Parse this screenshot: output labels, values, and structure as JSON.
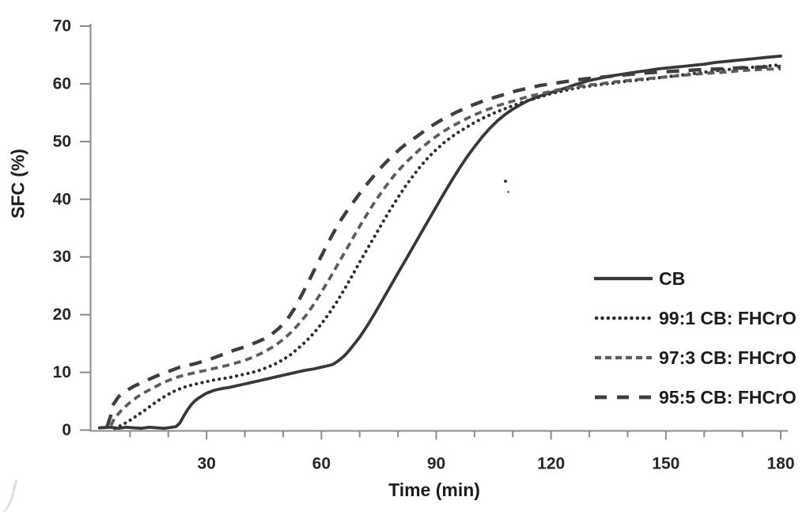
{
  "figure": {
    "background": "#ffffff",
    "text_color": "#1c1c1c",
    "axis_color": "#8a8a8a"
  },
  "chart_data": {
    "type": "line",
    "title": "",
    "xlabel": "Time (min)",
    "ylabel": "SFC (%)",
    "xlim": [
      0,
      180
    ],
    "ylim": [
      0,
      70
    ],
    "grid": false,
    "legend_position": "right-middle",
    "y_ticks": [
      0,
      10,
      20,
      30,
      40,
      50,
      60,
      70
    ],
    "x_major_ticks": [
      30,
      60,
      90,
      120,
      150,
      180
    ],
    "x_minor_ticks": [
      10,
      20,
      40,
      50,
      70,
      80,
      100,
      110,
      130,
      140,
      160,
      170
    ],
    "series": [
      {
        "name": "CB",
        "style": "solid",
        "color": "#383838",
        "width": 3.8,
        "points": [
          [
            2,
            0.4
          ],
          [
            5,
            0.5
          ],
          [
            7,
            0.3
          ],
          [
            9,
            0.5
          ],
          [
            11,
            0.4
          ],
          [
            13,
            0.3
          ],
          [
            15,
            0.5
          ],
          [
            17,
            0.4
          ],
          [
            19,
            0.3
          ],
          [
            21,
            0.5
          ],
          [
            22,
            0.6
          ],
          [
            23,
            1.2
          ],
          [
            24,
            2.4
          ],
          [
            25,
            3.5
          ],
          [
            26,
            4.4
          ],
          [
            27,
            5.1
          ],
          [
            28,
            5.6
          ],
          [
            29,
            6.0
          ],
          [
            30,
            6.4
          ],
          [
            32,
            6.9
          ],
          [
            34,
            7.2
          ],
          [
            36,
            7.4
          ],
          [
            38,
            7.7
          ],
          [
            40,
            8.0
          ],
          [
            42,
            8.3
          ],
          [
            44,
            8.6
          ],
          [
            46,
            8.9
          ],
          [
            48,
            9.2
          ],
          [
            50,
            9.5
          ],
          [
            52,
            9.8
          ],
          [
            54,
            10.1
          ],
          [
            56,
            10.4
          ],
          [
            58,
            10.6
          ],
          [
            60,
            10.9
          ],
          [
            62,
            11.2
          ],
          [
            63,
            11.4
          ],
          [
            64,
            11.8
          ],
          [
            65,
            12.3
          ],
          [
            66,
            12.9
          ],
          [
            67,
            13.6
          ],
          [
            68,
            14.4
          ],
          [
            70,
            16.1
          ],
          [
            72,
            18.1
          ],
          [
            74,
            20.3
          ],
          [
            76,
            22.6
          ],
          [
            78,
            24.9
          ],
          [
            80,
            27.2
          ],
          [
            82,
            29.5
          ],
          [
            84,
            31.8
          ],
          [
            86,
            34.1
          ],
          [
            88,
            36.4
          ],
          [
            90,
            38.7
          ],
          [
            92,
            41.0
          ],
          [
            94,
            43.2
          ],
          [
            96,
            45.3
          ],
          [
            98,
            47.3
          ],
          [
            100,
            49.1
          ],
          [
            102,
            50.8
          ],
          [
            104,
            52.3
          ],
          [
            106,
            53.6
          ],
          [
            108,
            54.7
          ],
          [
            110,
            55.6
          ],
          [
            112,
            56.4
          ],
          [
            114,
            57.1
          ],
          [
            116,
            57.6
          ],
          [
            118,
            58.1
          ],
          [
            120,
            58.5
          ],
          [
            122,
            58.9
          ],
          [
            124,
            59.3
          ],
          [
            126,
            59.8
          ],
          [
            128,
            60.2
          ],
          [
            130,
            60.6
          ],
          [
            133,
            61.0
          ],
          [
            136,
            61.4
          ],
          [
            139,
            61.7
          ],
          [
            142,
            62.0
          ],
          [
            145,
            62.3
          ],
          [
            148,
            62.6
          ],
          [
            151,
            62.8
          ],
          [
            154,
            63.0
          ],
          [
            157,
            63.2
          ],
          [
            160,
            63.4
          ],
          [
            163,
            63.7
          ],
          [
            166,
            63.9
          ],
          [
            169,
            64.1
          ],
          [
            172,
            64.3
          ],
          [
            175,
            64.5
          ],
          [
            178,
            64.7
          ],
          [
            180,
            64.8
          ]
        ]
      },
      {
        "name": "99:1 CB: FHCrO",
        "style": "dotted",
        "color": "#2f2f2f",
        "width": 4.2,
        "points": [
          [
            6,
            0.3
          ],
          [
            8,
            0.9
          ],
          [
            10,
            1.7
          ],
          [
            12,
            2.6
          ],
          [
            14,
            3.5
          ],
          [
            16,
            4.5
          ],
          [
            18,
            5.4
          ],
          [
            20,
            6.2
          ],
          [
            22,
            6.9
          ],
          [
            24,
            7.4
          ],
          [
            26,
            7.8
          ],
          [
            28,
            8.1
          ],
          [
            30,
            8.4
          ],
          [
            32,
            8.7
          ],
          [
            34,
            8.9
          ],
          [
            36,
            9.1
          ],
          [
            38,
            9.4
          ],
          [
            40,
            9.7
          ],
          [
            42,
            10.0
          ],
          [
            44,
            10.4
          ],
          [
            46,
            10.9
          ],
          [
            48,
            11.5
          ],
          [
            50,
            12.2
          ],
          [
            52,
            13.1
          ],
          [
            54,
            14.2
          ],
          [
            56,
            15.4
          ],
          [
            58,
            16.8
          ],
          [
            60,
            18.4
          ],
          [
            62,
            20.2
          ],
          [
            64,
            22.2
          ],
          [
            66,
            24.4
          ],
          [
            68,
            26.7
          ],
          [
            70,
            29.1
          ],
          [
            72,
            31.4
          ],
          [
            74,
            33.7
          ],
          [
            76,
            36.0
          ],
          [
            78,
            38.2
          ],
          [
            80,
            40.3
          ],
          [
            82,
            42.3
          ],
          [
            84,
            44.1
          ],
          [
            86,
            45.8
          ],
          [
            88,
            47.3
          ],
          [
            90,
            48.6
          ],
          [
            92,
            49.8
          ],
          [
            94,
            50.8
          ],
          [
            96,
            51.7
          ],
          [
            98,
            52.5
          ],
          [
            100,
            53.3
          ],
          [
            102,
            54.0
          ],
          [
            104,
            54.6
          ],
          [
            106,
            55.2
          ],
          [
            108,
            55.7
          ],
          [
            110,
            56.2
          ],
          [
            112,
            56.7
          ],
          [
            114,
            57.1
          ],
          [
            116,
            57.5
          ],
          [
            118,
            57.9
          ],
          [
            120,
            58.3
          ],
          [
            122,
            58.6
          ],
          [
            124,
            58.9
          ],
          [
            126,
            59.2
          ],
          [
            128,
            59.4
          ],
          [
            130,
            59.6
          ],
          [
            133,
            59.9
          ],
          [
            136,
            60.1
          ],
          [
            139,
            60.4
          ],
          [
            142,
            60.6
          ],
          [
            145,
            60.8
          ],
          [
            150,
            61.2
          ],
          [
            155,
            61.6
          ],
          [
            160,
            62.0
          ],
          [
            165,
            62.4
          ],
          [
            170,
            62.7
          ],
          [
            175,
            63.0
          ],
          [
            180,
            63.3
          ]
        ]
      },
      {
        "name": "97:3 CB: FHCrO",
        "style": "dash-small",
        "color": "#5d5d5d",
        "width": 3.8,
        "points": [
          [
            5,
            0.8
          ],
          [
            6,
            2.1
          ],
          [
            8,
            3.6
          ],
          [
            10,
            4.8
          ],
          [
            12,
            5.8
          ],
          [
            14,
            6.6
          ],
          [
            16,
            7.3
          ],
          [
            18,
            8.0
          ],
          [
            20,
            8.6
          ],
          [
            22,
            9.1
          ],
          [
            24,
            9.5
          ],
          [
            26,
            9.8
          ],
          [
            28,
            10.1
          ],
          [
            30,
            10.4
          ],
          [
            32,
            10.7
          ],
          [
            34,
            11.0
          ],
          [
            36,
            11.3
          ],
          [
            38,
            11.7
          ],
          [
            40,
            12.1
          ],
          [
            42,
            12.6
          ],
          [
            44,
            13.2
          ],
          [
            46,
            13.9
          ],
          [
            48,
            14.7
          ],
          [
            50,
            15.7
          ],
          [
            52,
            16.9
          ],
          [
            54,
            18.3
          ],
          [
            56,
            19.9
          ],
          [
            58,
            21.8
          ],
          [
            60,
            23.9
          ],
          [
            62,
            26.1
          ],
          [
            64,
            28.4
          ],
          [
            66,
            30.7
          ],
          [
            68,
            33.0
          ],
          [
            70,
            35.3
          ],
          [
            72,
            37.5
          ],
          [
            74,
            39.6
          ],
          [
            76,
            41.5
          ],
          [
            78,
            43.3
          ],
          [
            80,
            44.9
          ],
          [
            82,
            46.3
          ],
          [
            84,
            47.6
          ],
          [
            86,
            48.8
          ],
          [
            88,
            49.9
          ],
          [
            90,
            50.9
          ],
          [
            92,
            51.8
          ],
          [
            94,
            52.6
          ],
          [
            96,
            53.3
          ],
          [
            98,
            54.0
          ],
          [
            100,
            54.6
          ],
          [
            102,
            55.2
          ],
          [
            104,
            55.7
          ],
          [
            106,
            56.2
          ],
          [
            108,
            56.6
          ],
          [
            110,
            57.0
          ],
          [
            112,
            57.4
          ],
          [
            114,
            57.8
          ],
          [
            116,
            58.1
          ],
          [
            118,
            58.4
          ],
          [
            120,
            58.7
          ],
          [
            122,
            59.0
          ],
          [
            124,
            59.2
          ],
          [
            126,
            59.4
          ],
          [
            128,
            59.6
          ],
          [
            130,
            59.8
          ],
          [
            133,
            60.0
          ],
          [
            136,
            60.3
          ],
          [
            139,
            60.5
          ],
          [
            142,
            60.7
          ],
          [
            145,
            60.9
          ],
          [
            150,
            61.2
          ],
          [
            155,
            61.5
          ],
          [
            160,
            61.8
          ],
          [
            165,
            62.0
          ],
          [
            170,
            62.3
          ],
          [
            175,
            62.5
          ],
          [
            180,
            62.6
          ]
        ]
      },
      {
        "name": "95:5 CB: FHCrO",
        "style": "dash-large",
        "color": "#3f3f3f",
        "width": 4.4,
        "points": [
          [
            4,
            0.6
          ],
          [
            5,
            2.6
          ],
          [
            5.5,
            4.3
          ],
          [
            7,
            5.8
          ],
          [
            9,
            6.8
          ],
          [
            11,
            7.6
          ],
          [
            13,
            8.2
          ],
          [
            15,
            8.8
          ],
          [
            17,
            9.4
          ],
          [
            19,
            9.9
          ],
          [
            21,
            10.4
          ],
          [
            23,
            10.9
          ],
          [
            25,
            11.2
          ],
          [
            27,
            11.5
          ],
          [
            29,
            11.9
          ],
          [
            31,
            12.3
          ],
          [
            33,
            12.8
          ],
          [
            35,
            13.3
          ],
          [
            37,
            13.8
          ],
          [
            39,
            14.2
          ],
          [
            41,
            14.7
          ],
          [
            43,
            15.2
          ],
          [
            45,
            15.8
          ],
          [
            47,
            16.6
          ],
          [
            49,
            17.7
          ],
          [
            51,
            19.1
          ],
          [
            53,
            21.1
          ],
          [
            55,
            23.6
          ],
          [
            57,
            26.2
          ],
          [
            59,
            28.9
          ],
          [
            61,
            31.5
          ],
          [
            63,
            34.0
          ],
          [
            65,
            36.3
          ],
          [
            67,
            38.3
          ],
          [
            69,
            40.1
          ],
          [
            71,
            41.9
          ],
          [
            73,
            43.5
          ],
          [
            75,
            45.1
          ],
          [
            77,
            46.5
          ],
          [
            79,
            47.8
          ],
          [
            81,
            49.0
          ],
          [
            83,
            50.0
          ],
          [
            85,
            50.9
          ],
          [
            87,
            51.9
          ],
          [
            89,
            52.8
          ],
          [
            91,
            53.6
          ],
          [
            93,
            54.3
          ],
          [
            95,
            55.0
          ],
          [
            97,
            55.6
          ],
          [
            99,
            56.2
          ],
          [
            101,
            56.7
          ],
          [
            103,
            57.2
          ],
          [
            105,
            57.6
          ],
          [
            107,
            58.0
          ],
          [
            109,
            58.4
          ],
          [
            111,
            58.8
          ],
          [
            113,
            59.1
          ],
          [
            115,
            59.4
          ],
          [
            117,
            59.7
          ],
          [
            119,
            59.9
          ],
          [
            121,
            60.1
          ],
          [
            123,
            60.3
          ],
          [
            125,
            60.5
          ],
          [
            128,
            60.8
          ],
          [
            131,
            61.0
          ],
          [
            134,
            61.2
          ],
          [
            137,
            61.4
          ],
          [
            140,
            61.6
          ],
          [
            145,
            61.9
          ],
          [
            150,
            62.1
          ],
          [
            155,
            62.3
          ],
          [
            160,
            62.5
          ],
          [
            165,
            62.6
          ],
          [
            170,
            62.8
          ],
          [
            175,
            62.9
          ],
          [
            180,
            63.0
          ]
        ]
      }
    ]
  }
}
